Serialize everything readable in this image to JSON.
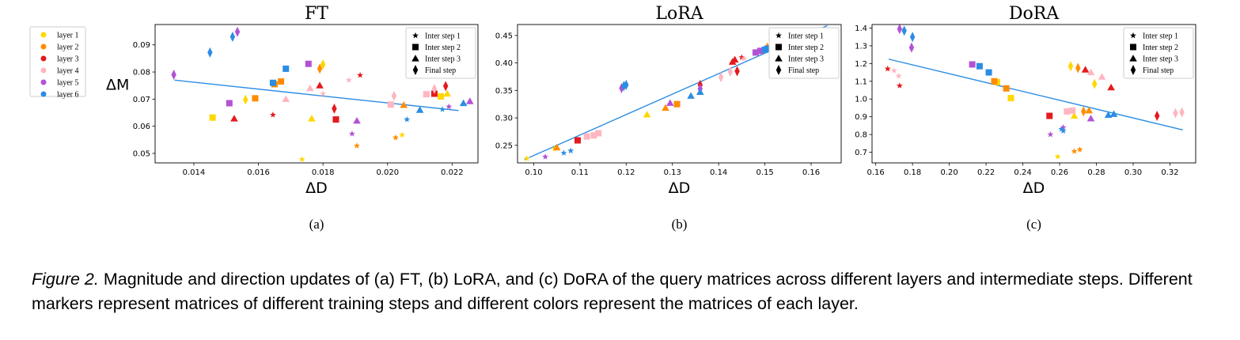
{
  "legend_layers": {
    "entries": [
      {
        "label": "layer 1",
        "color": "#ffd700"
      },
      {
        "label": "layer 2",
        "color": "#ff8c00"
      },
      {
        "label": "layer 3",
        "color": "#e41a1c"
      },
      {
        "label": "layer 4",
        "color": "#ffb6c1"
      },
      {
        "label": "layer 5",
        "color": "#b253d6"
      },
      {
        "label": "layer 6",
        "color": "#2b8de3"
      }
    ]
  },
  "legend_steps": [
    "Inter step 1",
    "Inter step 2",
    "Inter step 3",
    "Final step"
  ],
  "regression_color": "#2b8de3",
  "caption": {
    "label": "Figure 2.",
    "text": " Magnitude and direction updates of (a) FT, (b) LoRA, and (c) DoRA of the query matrices across different layers and intermediate steps. Different markers represent matrices of different training steps and different colors represent the matrices of each layer."
  },
  "chart_data": [
    {
      "type": "scatter",
      "title": "FT",
      "xlabel": "ΔD",
      "ylabel": "ΔM",
      "sublabel": "(a)",
      "xlim": [
        0.0128,
        0.0228
      ],
      "ylim": [
        0.0465,
        0.0975
      ],
      "xticks": [
        0.014,
        0.016,
        0.018,
        0.02,
        0.022
      ],
      "xtick_labels": [
        "0.014",
        "0.016",
        "0.018",
        "0.020",
        "0.022"
      ],
      "yticks": [
        0.05,
        0.06,
        0.07,
        0.08,
        0.09
      ],
      "ytick_labels": [
        "0.05",
        "0.06",
        "0.07",
        "0.08",
        "0.09"
      ],
      "trend": [
        [
          0.0134,
          0.077
        ],
        [
          0.0222,
          0.0658
        ]
      ],
      "points": [
        {
          "x": 0.01735,
          "y": 0.0478,
          "layer": 0,
          "step": 0
        },
        {
          "x": 0.01765,
          "y": 0.0628,
          "layer": 0,
          "step": 2
        },
        {
          "x": 0.018,
          "y": 0.0828,
          "layer": 0,
          "step": 3
        },
        {
          "x": 0.01458,
          "y": 0.0632,
          "layer": 0,
          "step": 1
        },
        {
          "x": 0.0156,
          "y": 0.0698,
          "layer": 0,
          "step": 3
        },
        {
          "x": 0.02045,
          "y": 0.0568,
          "layer": 0,
          "step": 0
        },
        {
          "x": 0.02185,
          "y": 0.072,
          "layer": 0,
          "step": 2
        },
        {
          "x": 0.02165,
          "y": 0.071,
          "layer": 0,
          "step": 1
        },
        {
          "x": 0.01905,
          "y": 0.0528,
          "layer": 1,
          "step": 0
        },
        {
          "x": 0.0159,
          "y": 0.0703,
          "layer": 1,
          "step": 1
        },
        {
          "x": 0.0165,
          "y": 0.0755,
          "layer": 1,
          "step": 1
        },
        {
          "x": 0.0167,
          "y": 0.0765,
          "layer": 1,
          "step": 1
        },
        {
          "x": 0.0179,
          "y": 0.0812,
          "layer": 1,
          "step": 3
        },
        {
          "x": 0.02025,
          "y": 0.0558,
          "layer": 1,
          "step": 0
        },
        {
          "x": 0.0205,
          "y": 0.0678,
          "layer": 1,
          "step": 2
        },
        {
          "x": 0.01525,
          "y": 0.0628,
          "layer": 2,
          "step": 2
        },
        {
          "x": 0.01645,
          "y": 0.0642,
          "layer": 2,
          "step": 0
        },
        {
          "x": 0.0179,
          "y": 0.075,
          "layer": 2,
          "step": 2
        },
        {
          "x": 0.0184,
          "y": 0.0625,
          "layer": 2,
          "step": 1
        },
        {
          "x": 0.01835,
          "y": 0.0665,
          "layer": 2,
          "step": 3
        },
        {
          "x": 0.01915,
          "y": 0.0788,
          "layer": 2,
          "step": 0
        },
        {
          "x": 0.02145,
          "y": 0.072,
          "layer": 2,
          "step": 1
        },
        {
          "x": 0.0218,
          "y": 0.0748,
          "layer": 2,
          "step": 3
        },
        {
          "x": 0.01685,
          "y": 0.07,
          "layer": 3,
          "step": 2
        },
        {
          "x": 0.0176,
          "y": 0.074,
          "layer": 3,
          "step": 2
        },
        {
          "x": 0.018,
          "y": 0.072,
          "layer": 3,
          "step": 0
        },
        {
          "x": 0.0188,
          "y": 0.077,
          "layer": 3,
          "step": 0
        },
        {
          "x": 0.0201,
          "y": 0.068,
          "layer": 3,
          "step": 1
        },
        {
          "x": 0.0202,
          "y": 0.0712,
          "layer": 3,
          "step": 3
        },
        {
          "x": 0.0212,
          "y": 0.0718,
          "layer": 3,
          "step": 1
        },
        {
          "x": 0.02145,
          "y": 0.0738,
          "layer": 3,
          "step": 3
        },
        {
          "x": 0.01338,
          "y": 0.079,
          "layer": 4,
          "step": 3
        },
        {
          "x": 0.0151,
          "y": 0.0685,
          "layer": 4,
          "step": 1
        },
        {
          "x": 0.01535,
          "y": 0.0948,
          "layer": 4,
          "step": 3
        },
        {
          "x": 0.01755,
          "y": 0.083,
          "layer": 4,
          "step": 1
        },
        {
          "x": 0.0189,
          "y": 0.0572,
          "layer": 4,
          "step": 0
        },
        {
          "x": 0.01905,
          "y": 0.062,
          "layer": 4,
          "step": 2
        },
        {
          "x": 0.0219,
          "y": 0.0672,
          "layer": 4,
          "step": 0
        },
        {
          "x": 0.02255,
          "y": 0.0692,
          "layer": 4,
          "step": 2
        },
        {
          "x": 0.0145,
          "y": 0.0872,
          "layer": 5,
          "step": 3
        },
        {
          "x": 0.0152,
          "y": 0.093,
          "layer": 5,
          "step": 3
        },
        {
          "x": 0.01645,
          "y": 0.076,
          "layer": 5,
          "step": 1
        },
        {
          "x": 0.01685,
          "y": 0.0812,
          "layer": 5,
          "step": 1
        },
        {
          "x": 0.0206,
          "y": 0.0625,
          "layer": 5,
          "step": 0
        },
        {
          "x": 0.021,
          "y": 0.066,
          "layer": 5,
          "step": 2
        },
        {
          "x": 0.0217,
          "y": 0.0662,
          "layer": 5,
          "step": 0
        },
        {
          "x": 0.02235,
          "y": 0.0685,
          "layer": 5,
          "step": 2
        }
      ]
    },
    {
      "type": "scatter",
      "title": "LoRA",
      "xlabel": "ΔD",
      "ylabel": "",
      "sublabel": "(b)",
      "xlim": [
        0.0965,
        0.1665
      ],
      "ylim": [
        0.218,
        0.47
      ],
      "xticks": [
        0.1,
        0.11,
        0.12,
        0.13,
        0.14,
        0.15,
        0.16
      ],
      "xtick_labels": [
        "0.10",
        "0.11",
        "0.12",
        "0.13",
        "0.14",
        "0.15",
        "0.16"
      ],
      "yticks": [
        0.25,
        0.3,
        0.35,
        0.4,
        0.45
      ],
      "ytick_labels": [
        "0.25",
        "0.30",
        "0.35",
        "0.40",
        "0.45"
      ],
      "trend": [
        [
          0.098,
          0.224
        ],
        [
          0.1635,
          0.468
        ]
      ],
      "points": [
        {
          "x": 0.0985,
          "y": 0.226,
          "layer": 0,
          "step": 0
        },
        {
          "x": 0.1045,
          "y": 0.244,
          "layer": 0,
          "step": 0
        },
        {
          "x": 0.1245,
          "y": 0.306,
          "layer": 0,
          "step": 2
        },
        {
          "x": 0.162,
          "y": 0.447,
          "layer": 0,
          "step": 1
        },
        {
          "x": 0.163,
          "y": 0.451,
          "layer": 0,
          "step": 1
        },
        {
          "x": 0.1515,
          "y": 0.428,
          "layer": 0,
          "step": 3
        },
        {
          "x": 0.105,
          "y": 0.246,
          "layer": 1,
          "step": 2
        },
        {
          "x": 0.1285,
          "y": 0.318,
          "layer": 1,
          "step": 2
        },
        {
          "x": 0.151,
          "y": 0.427,
          "layer": 1,
          "step": 3
        },
        {
          "x": 0.1635,
          "y": 0.452,
          "layer": 1,
          "step": 1
        },
        {
          "x": 0.131,
          "y": 0.325,
          "layer": 1,
          "step": 1
        },
        {
          "x": 0.1505,
          "y": 0.428,
          "layer": 1,
          "step": 3
        },
        {
          "x": 0.1095,
          "y": 0.259,
          "layer": 2,
          "step": 1
        },
        {
          "x": 0.136,
          "y": 0.36,
          "layer": 2,
          "step": 3
        },
        {
          "x": 0.143,
          "y": 0.402,
          "layer": 2,
          "step": 2
        },
        {
          "x": 0.144,
          "y": 0.385,
          "layer": 2,
          "step": 3
        },
        {
          "x": 0.145,
          "y": 0.41,
          "layer": 2,
          "step": 0
        },
        {
          "x": 0.1435,
          "y": 0.406,
          "layer": 2,
          "step": 2
        },
        {
          "x": 0.1115,
          "y": 0.266,
          "layer": 3,
          "step": 1
        },
        {
          "x": 0.113,
          "y": 0.268,
          "layer": 3,
          "step": 1
        },
        {
          "x": 0.114,
          "y": 0.272,
          "layer": 3,
          "step": 1
        },
        {
          "x": 0.1405,
          "y": 0.374,
          "layer": 3,
          "step": 3
        },
        {
          "x": 0.1425,
          "y": 0.384,
          "layer": 3,
          "step": 3
        },
        {
          "x": 0.1455,
          "y": 0.408,
          "layer": 3,
          "step": 0
        },
        {
          "x": 0.1025,
          "y": 0.229,
          "layer": 4,
          "step": 0
        },
        {
          "x": 0.119,
          "y": 0.354,
          "layer": 4,
          "step": 3
        },
        {
          "x": 0.1295,
          "y": 0.327,
          "layer": 4,
          "step": 2
        },
        {
          "x": 0.136,
          "y": 0.353,
          "layer": 4,
          "step": 3
        },
        {
          "x": 0.148,
          "y": 0.419,
          "layer": 4,
          "step": 1
        },
        {
          "x": 0.149,
          "y": 0.422,
          "layer": 4,
          "step": 1
        },
        {
          "x": 0.1065,
          "y": 0.236,
          "layer": 5,
          "step": 0
        },
        {
          "x": 0.108,
          "y": 0.24,
          "layer": 5,
          "step": 0
        },
        {
          "x": 0.1195,
          "y": 0.358,
          "layer": 5,
          "step": 3
        },
        {
          "x": 0.12,
          "y": 0.36,
          "layer": 5,
          "step": 3
        },
        {
          "x": 0.134,
          "y": 0.34,
          "layer": 5,
          "step": 2
        },
        {
          "x": 0.136,
          "y": 0.347,
          "layer": 5,
          "step": 2
        },
        {
          "x": 0.15,
          "y": 0.424,
          "layer": 5,
          "step": 1
        },
        {
          "x": 0.1505,
          "y": 0.426,
          "layer": 5,
          "step": 1
        }
      ]
    },
    {
      "type": "scatter",
      "title": "DoRA",
      "xlabel": "ΔD",
      "ylabel": "",
      "sublabel": "(c)",
      "xlim": [
        0.158,
        0.334
      ],
      "ylim": [
        0.64,
        1.42
      ],
      "xticks": [
        0.16,
        0.18,
        0.2,
        0.22,
        0.24,
        0.26,
        0.28,
        0.3,
        0.32
      ],
      "xtick_labels": [
        "0.16",
        "0.18",
        "0.20",
        "0.22",
        "0.24",
        "0.26",
        "0.28",
        "0.30",
        "0.32"
      ],
      "yticks": [
        0.7,
        0.8,
        0.9,
        1.0,
        1.1,
        1.2,
        1.3,
        1.4
      ],
      "ytick_labels": [
        "0.7",
        "0.8",
        "0.9",
        "1.0",
        "1.1",
        "1.2",
        "1.3",
        "1.4"
      ],
      "trend": [
        [
          0.167,
          1.225
        ],
        [
          0.327,
          0.826
        ]
      ],
      "points": [
        {
          "x": 0.2335,
          "y": 1.005,
          "layer": 0,
          "step": 1
        },
        {
          "x": 0.259,
          "y": 0.675,
          "layer": 0,
          "step": 0
        },
        {
          "x": 0.266,
          "y": 1.185,
          "layer": 0,
          "step": 3
        },
        {
          "x": 0.268,
          "y": 0.905,
          "layer": 0,
          "step": 2
        },
        {
          "x": 0.279,
          "y": 1.085,
          "layer": 0,
          "step": 3
        },
        {
          "x": 0.226,
          "y": 1.095,
          "layer": 0,
          "step": 1
        },
        {
          "x": 0.2245,
          "y": 1.1,
          "layer": 1,
          "step": 1
        },
        {
          "x": 0.231,
          "y": 1.06,
          "layer": 1,
          "step": 1
        },
        {
          "x": 0.27,
          "y": 1.175,
          "layer": 1,
          "step": 3
        },
        {
          "x": 0.271,
          "y": 0.715,
          "layer": 1,
          "step": 0
        },
        {
          "x": 0.273,
          "y": 0.93,
          "layer": 1,
          "step": 3
        },
        {
          "x": 0.276,
          "y": 0.935,
          "layer": 1,
          "step": 2
        },
        {
          "x": 0.268,
          "y": 0.705,
          "layer": 1,
          "step": 0
        },
        {
          "x": 0.1665,
          "y": 1.17,
          "layer": 2,
          "step": 0
        },
        {
          "x": 0.173,
          "y": 1.075,
          "layer": 2,
          "step": 0
        },
        {
          "x": 0.2545,
          "y": 0.905,
          "layer": 2,
          "step": 1
        },
        {
          "x": 0.274,
          "y": 1.165,
          "layer": 2,
          "step": 2
        },
        {
          "x": 0.288,
          "y": 1.065,
          "layer": 2,
          "step": 2
        },
        {
          "x": 0.313,
          "y": 0.905,
          "layer": 2,
          "step": 3
        },
        {
          "x": 0.17,
          "y": 1.16,
          "layer": 3,
          "step": 0
        },
        {
          "x": 0.1725,
          "y": 1.13,
          "layer": 3,
          "step": 0
        },
        {
          "x": 0.264,
          "y": 0.93,
          "layer": 3,
          "step": 1
        },
        {
          "x": 0.267,
          "y": 0.935,
          "layer": 3,
          "step": 1
        },
        {
          "x": 0.277,
          "y": 1.15,
          "layer": 3,
          "step": 2
        },
        {
          "x": 0.283,
          "y": 1.125,
          "layer": 3,
          "step": 2
        },
        {
          "x": 0.323,
          "y": 0.92,
          "layer": 3,
          "step": 3
        },
        {
          "x": 0.3265,
          "y": 0.925,
          "layer": 3,
          "step": 3
        },
        {
          "x": 0.173,
          "y": 1.395,
          "layer": 4,
          "step": 3
        },
        {
          "x": 0.1795,
          "y": 1.29,
          "layer": 4,
          "step": 3
        },
        {
          "x": 0.2125,
          "y": 1.195,
          "layer": 4,
          "step": 1
        },
        {
          "x": 0.255,
          "y": 0.8,
          "layer": 4,
          "step": 0
        },
        {
          "x": 0.262,
          "y": 0.84,
          "layer": 4,
          "step": 0
        },
        {
          "x": 0.277,
          "y": 0.89,
          "layer": 4,
          "step": 2
        },
        {
          "x": 0.1755,
          "y": 1.385,
          "layer": 5,
          "step": 3
        },
        {
          "x": 0.18,
          "y": 1.35,
          "layer": 5,
          "step": 3
        },
        {
          "x": 0.2165,
          "y": 1.185,
          "layer": 5,
          "step": 1
        },
        {
          "x": 0.2215,
          "y": 1.15,
          "layer": 5,
          "step": 1
        },
        {
          "x": 0.261,
          "y": 0.83,
          "layer": 5,
          "step": 0
        },
        {
          "x": 0.262,
          "y": 0.82,
          "layer": 5,
          "step": 0
        },
        {
          "x": 0.2865,
          "y": 0.91,
          "layer": 5,
          "step": 2
        },
        {
          "x": 0.2895,
          "y": 0.915,
          "layer": 5,
          "step": 2
        }
      ]
    }
  ]
}
